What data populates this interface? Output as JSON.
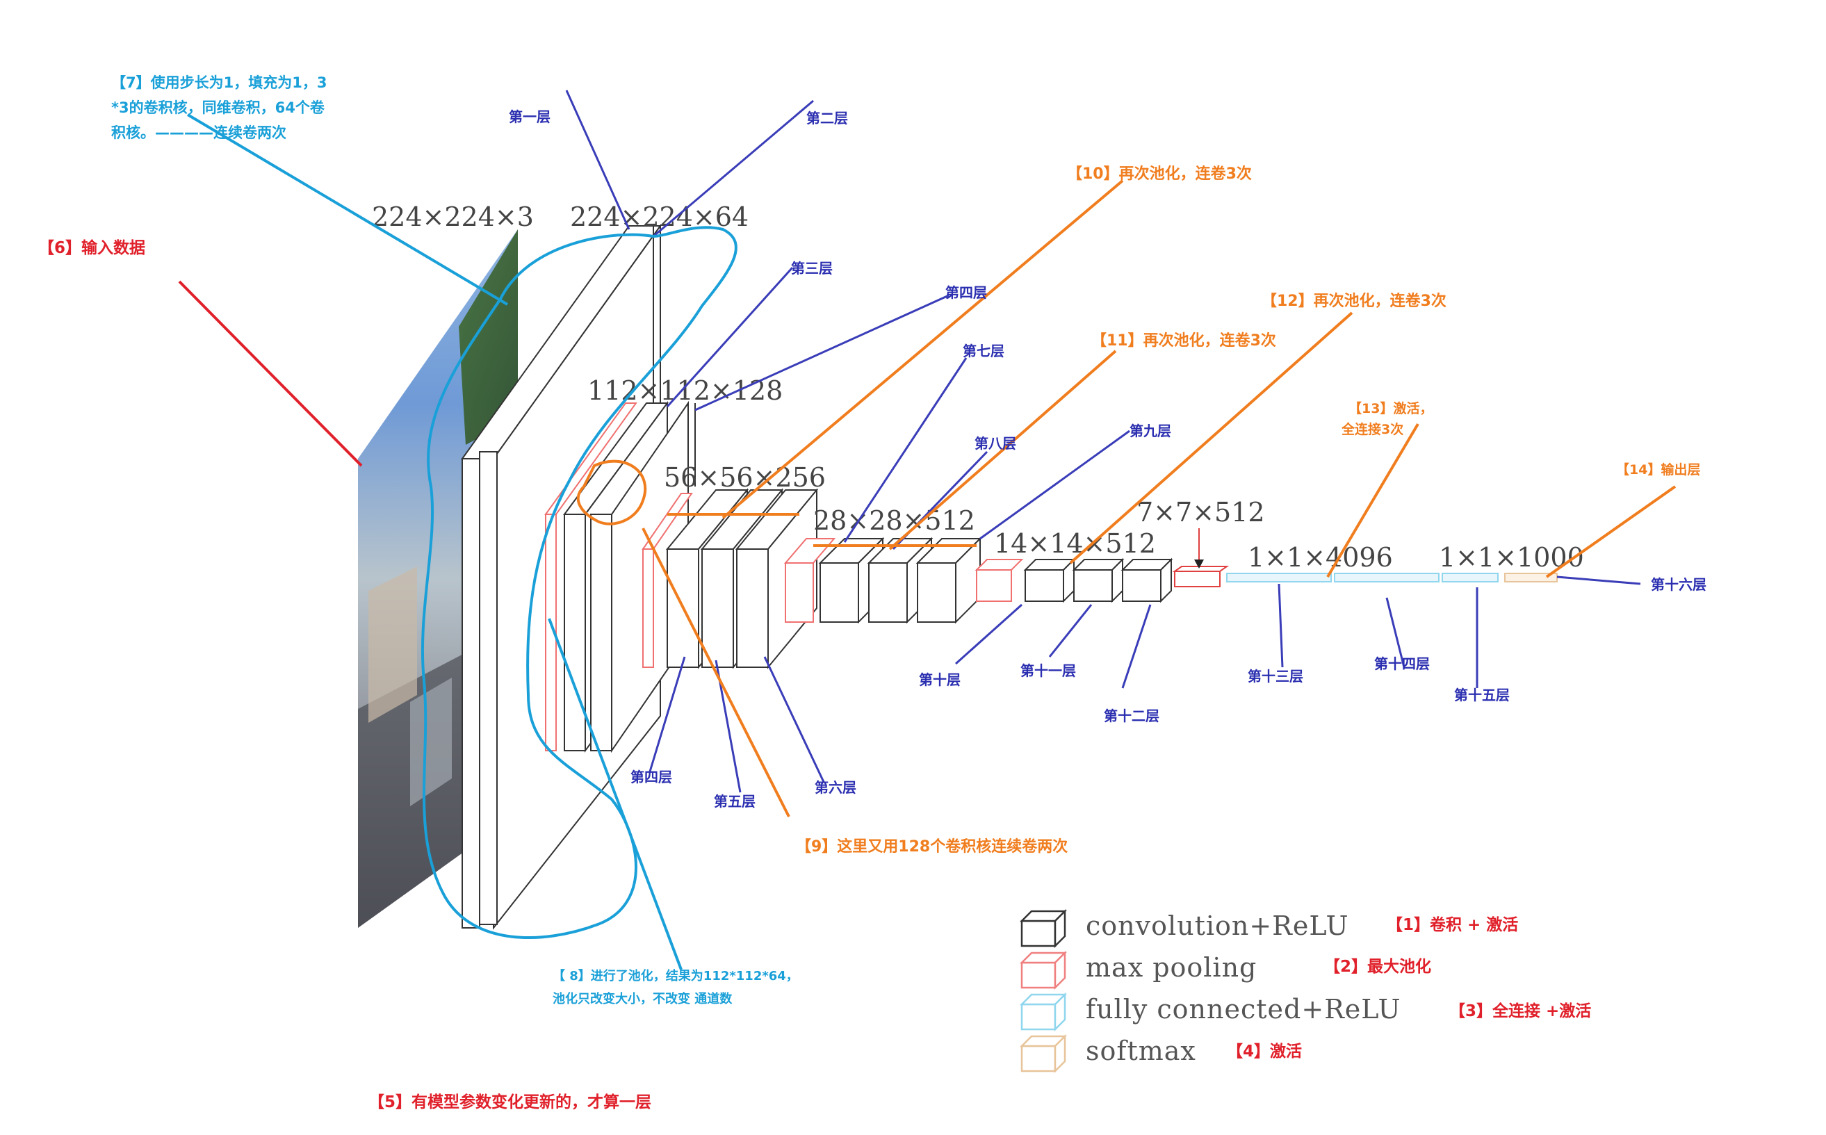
{
  "dimensions": {
    "d1": "224×224×3",
    "d2": "224×224×64",
    "d3": "112×112×128",
    "d4": "56×56×256",
    "d5": "28×28×512",
    "d6": "14×14×512",
    "d7": "7×7×512",
    "d8": "1×1×4096",
    "d9": "1×1×1000"
  },
  "layer_labels": {
    "l1": "第一层",
    "l2": "第二层",
    "l3": "第三层",
    "l4_top": "第四层",
    "l4_bottom": "第四层",
    "l5": "第五层",
    "l6": "第六层",
    "l7": "第七层",
    "l8": "第八层",
    "l9": "第九层",
    "l10": "第十层",
    "l11": "第十一层",
    "l12": "第十二层",
    "l13": "第十三层",
    "l14": "第十四层",
    "l15": "第十五层",
    "l16": "第十六层"
  },
  "notes": {
    "n1": "【1】卷积 + 激活",
    "n2": "【2】最大池化",
    "n3": "【3】全连接 +激活",
    "n4": "【4】激活",
    "n5": "【5】有模型参数变化更新的，才算一层",
    "n6": "【6】输入数据",
    "n7_line1": "【7】使用步长为1，填充为1，3",
    "n7_line2": "*3的卷积核，同维卷积，64个卷",
    "n7_line3": "积核。————连续卷两次",
    "n8_line1": "【 8】进行了池化，结果为112*112*64，",
    "n8_line2": "池化只改变大小，不改变 通道数",
    "n9": "【9】这里又用128个卷积核连续卷两次",
    "n10": "【10】再次池化，连卷3次",
    "n11": "【11】再次池化，连卷3次",
    "n12": "【12】再次池化，连卷3次",
    "n13_line1": "【13】激活，",
    "n13_line2": "全连接3次",
    "n14": "【14】输出层"
  },
  "legend": {
    "conv": "convolution+ReLU",
    "pool": "max pooling",
    "fc": "fully connected+ReLU",
    "softmax": "softmax"
  },
  "colors": {
    "conv": "#333333",
    "pool": "#f08080",
    "fc": "#8fd6ee",
    "softmax": "#e8c49a",
    "annotation_red": "#e0202a",
    "annotation_blue": "#1aa0d8",
    "annotation_orange": "#f07d1e",
    "layer_label": "#2b2fb0"
  }
}
